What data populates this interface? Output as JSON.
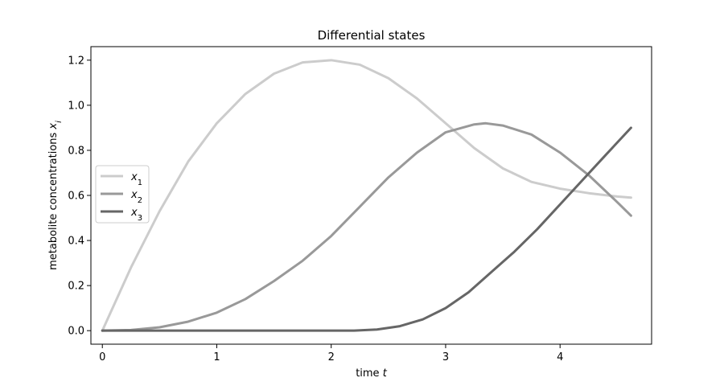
{
  "chart_data": {
    "type": "line",
    "title": "Differential states",
    "xlabel": "time t",
    "ylabel": "metabolite concentrations x_i",
    "xlim": [
      -0.1,
      4.8
    ],
    "ylim": [
      -0.06,
      1.26
    ],
    "xticks": [
      0,
      1,
      2,
      3,
      4
    ],
    "yticks": [
      0.0,
      0.2,
      0.4,
      0.6,
      0.8,
      1.0,
      1.2
    ],
    "xtick_labels": [
      "0",
      "1",
      "2",
      "3",
      "4"
    ],
    "ytick_labels": [
      "0.0",
      "0.2",
      "0.4",
      "0.6",
      "0.8",
      "1.0",
      "1.2"
    ],
    "grid": false,
    "legend_position": "center-left",
    "series": [
      {
        "name": "x1",
        "color": "#cccccc",
        "x": [
          0,
          0.25,
          0.5,
          0.75,
          1.0,
          1.25,
          1.5,
          1.75,
          2.0,
          2.25,
          2.5,
          2.75,
          3.0,
          3.25,
          3.5,
          3.75,
          4.0,
          4.25,
          4.5,
          4.62
        ],
        "y": [
          0.0,
          0.28,
          0.53,
          0.75,
          0.92,
          1.05,
          1.14,
          1.19,
          1.2,
          1.18,
          1.12,
          1.03,
          0.92,
          0.81,
          0.72,
          0.66,
          0.63,
          0.61,
          0.595,
          0.59
        ]
      },
      {
        "name": "x2",
        "color": "#999999",
        "x": [
          0,
          0.25,
          0.5,
          0.75,
          1.0,
          1.25,
          1.5,
          1.75,
          2.0,
          2.25,
          2.5,
          2.75,
          3.0,
          3.25,
          3.35,
          3.5,
          3.75,
          4.0,
          4.25,
          4.5,
          4.62
        ],
        "y": [
          0.0,
          0.003,
          0.015,
          0.04,
          0.08,
          0.14,
          0.22,
          0.31,
          0.42,
          0.55,
          0.68,
          0.79,
          0.88,
          0.915,
          0.92,
          0.91,
          0.87,
          0.79,
          0.69,
          0.57,
          0.51
        ]
      },
      {
        "name": "x3",
        "color": "#666666",
        "x": [
          0,
          0.5,
          1.0,
          1.5,
          2.0,
          2.2,
          2.4,
          2.6,
          2.8,
          3.0,
          3.2,
          3.4,
          3.6,
          3.8,
          4.0,
          4.2,
          4.4,
          4.62
        ],
        "y": [
          0.0,
          0.0,
          0.0,
          0.0,
          0.0,
          0.0,
          0.005,
          0.02,
          0.05,
          0.1,
          0.17,
          0.26,
          0.35,
          0.45,
          0.56,
          0.67,
          0.78,
          0.9
        ]
      }
    ]
  },
  "legend": {
    "items": [
      {
        "label": "x",
        "sub": "1",
        "color": "#cccccc"
      },
      {
        "label": "x",
        "sub": "2",
        "color": "#999999"
      },
      {
        "label": "x",
        "sub": "3",
        "color": "#666666"
      }
    ]
  }
}
